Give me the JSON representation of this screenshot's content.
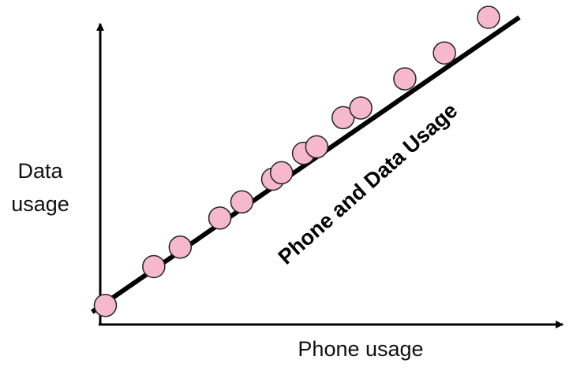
{
  "chart_data": {
    "type": "scatter",
    "title": "",
    "annotation": "Phone and Data Usage",
    "xlabel": "Phone usage",
    "ylabel_lines": [
      "Data",
      "usage"
    ],
    "xlim": [
      0,
      100
    ],
    "ylim": [
      0,
      100
    ],
    "ticks_shown": false,
    "grid": false,
    "legend": "none",
    "trend_line": {
      "x": [
        3,
        100
      ],
      "y": [
        9,
        100
      ]
    },
    "points": [
      {
        "x": 6,
        "y": 11
      },
      {
        "x": 17,
        "y": 23
      },
      {
        "x": 23,
        "y": 29
      },
      {
        "x": 32,
        "y": 38
      },
      {
        "x": 37,
        "y": 43
      },
      {
        "x": 44,
        "y": 50
      },
      {
        "x": 46,
        "y": 52
      },
      {
        "x": 51,
        "y": 58
      },
      {
        "x": 54,
        "y": 60
      },
      {
        "x": 60,
        "y": 69
      },
      {
        "x": 64,
        "y": 72
      },
      {
        "x": 74,
        "y": 81
      },
      {
        "x": 83,
        "y": 89
      },
      {
        "x": 93,
        "y": 100
      }
    ],
    "colors": {
      "point_fill": "#f6b8cc",
      "point_stroke": "#222222",
      "line": "#000000",
      "axis": "#000000"
    }
  }
}
